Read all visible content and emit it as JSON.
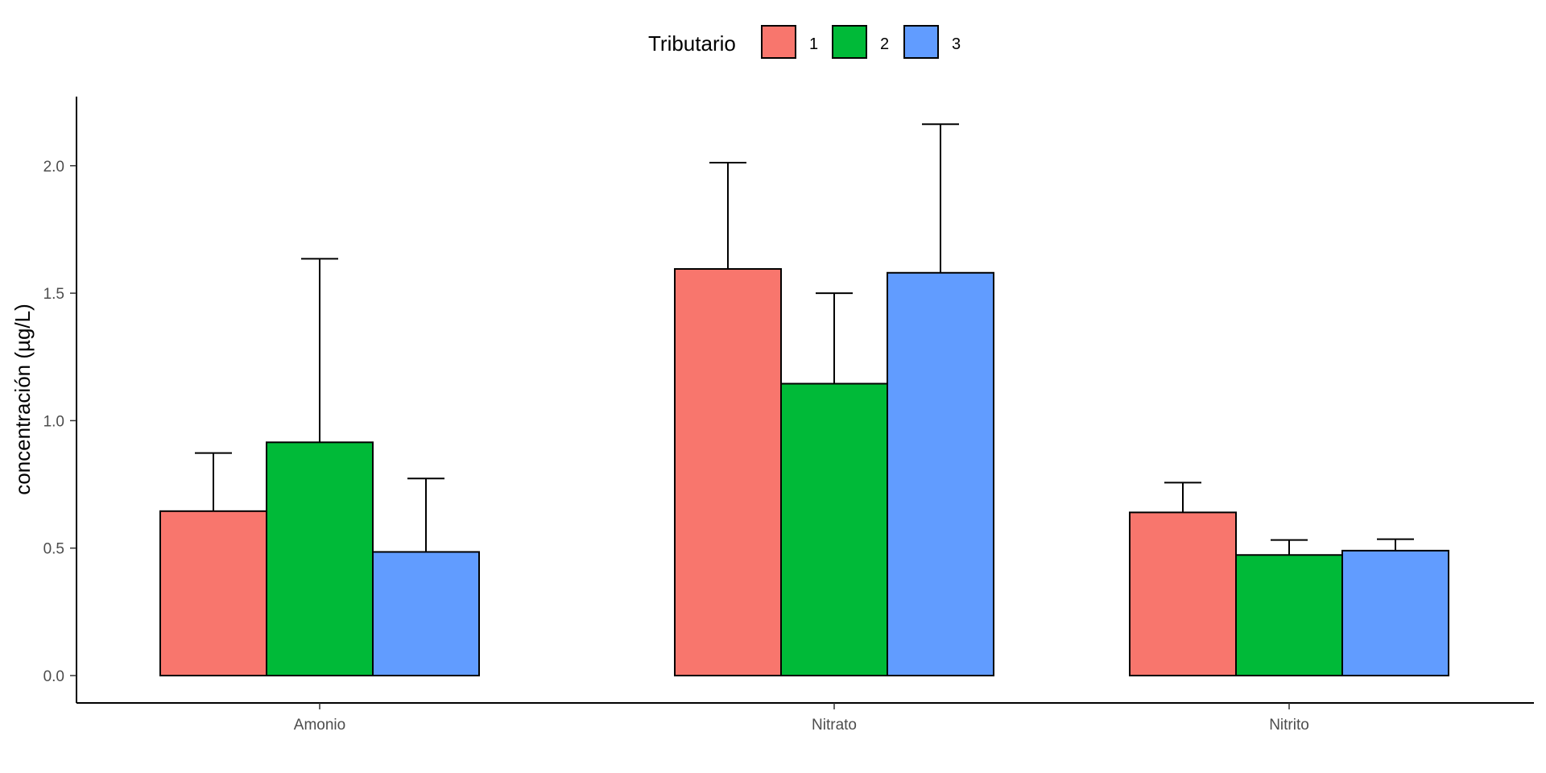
{
  "chart_data": {
    "type": "bar",
    "categories": [
      "Amonio",
      "Nitrato",
      "Nitrito"
    ],
    "series": [
      {
        "name": "1",
        "color": "#F8766D",
        "values": [
          0.645,
          1.595,
          0.64
        ],
        "error_upper": [
          0.873,
          2.012,
          0.757
        ]
      },
      {
        "name": "2",
        "color": "#00BA38",
        "values": [
          0.915,
          1.145,
          0.473
        ],
        "error_upper": [
          1.635,
          1.5,
          0.532
        ]
      },
      {
        "name": "3",
        "color": "#619CFF",
        "values": [
          0.485,
          1.58,
          0.49
        ],
        "error_upper": [
          0.773,
          2.163,
          0.535
        ]
      }
    ],
    "xlabel": "",
    "ylabel": "concentración (µg/L)",
    "ylim": [
      0,
      2.25
    ],
    "yticks": [
      "0.0",
      "0.5",
      "1.0",
      "1.5",
      "2.0"
    ],
    "grid": false,
    "legend": {
      "title": "Tributario",
      "position": "top"
    }
  }
}
